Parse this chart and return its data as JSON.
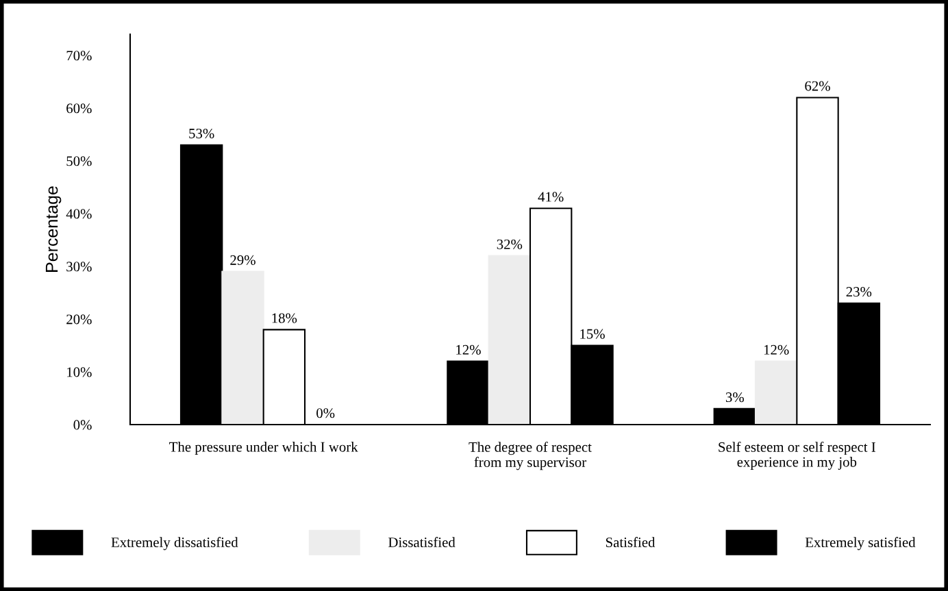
{
  "chart_data": {
    "type": "bar",
    "ylabel": "Percentage",
    "categories": [
      "The pressure under which I work",
      "The degree of respect\nfrom my supervisor",
      "Self esteem or self respect I\nexperience in my job"
    ],
    "series": [
      {
        "name": "Extremely dissatisfied",
        "color": "#000000",
        "values": [
          53,
          12,
          3
        ],
        "value_labels": [
          "53%",
          "12%",
          "3%"
        ]
      },
      {
        "name": "Dissatisfied",
        "color": "#ededed",
        "values": [
          29,
          32,
          12
        ],
        "value_labels": [
          "29%",
          "32%",
          "12%"
        ]
      },
      {
        "name": "Satisfied",
        "color": "#ffffff",
        "line_style": "solid",
        "values": [
          18,
          41,
          62
        ],
        "value_labels": [
          "18%",
          "41%",
          "62%"
        ]
      },
      {
        "name": "Extremely satisfied",
        "color": "#000000",
        "values": [
          0,
          15,
          23
        ],
        "value_labels": [
          "0%",
          "15%",
          "23%"
        ]
      }
    ],
    "ylim": [
      0,
      74
    ],
    "yticks": [
      {
        "value": 0,
        "label": "0%"
      },
      {
        "value": 10,
        "label": "10%"
      },
      {
        "value": 20,
        "label": "20%"
      },
      {
        "value": 30,
        "label": "30%"
      },
      {
        "value": 40,
        "label": "40%"
      },
      {
        "value": 50,
        "label": "50%"
      },
      {
        "value": 60,
        "label": "60%"
      },
      {
        "value": 70,
        "label": "70%"
      }
    ],
    "grid": false,
    "legend": "bottom"
  }
}
